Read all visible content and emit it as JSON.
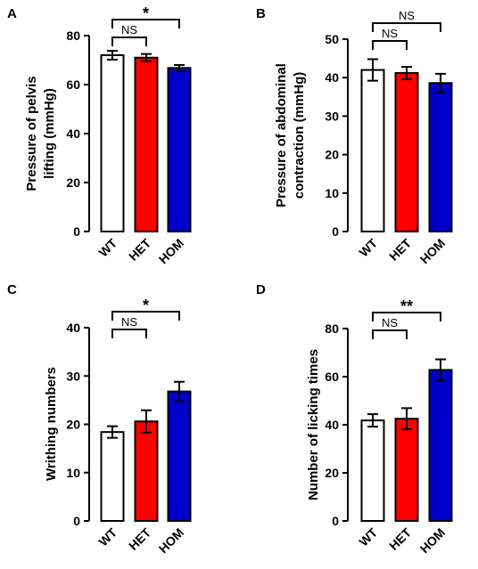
{
  "colors": {
    "WT": "#ffffff",
    "HET": "#ff0000",
    "HOM": "#0000cc",
    "stroke": "#000000"
  },
  "chart_data": [
    {
      "id": "A",
      "type": "bar",
      "panel_label": "A",
      "ylabel_lines": [
        "Pressure of pelvis",
        "lifting (mmHg)"
      ],
      "categories": [
        "WT",
        "HET",
        "HOM"
      ],
      "values": [
        72,
        71,
        66.8
      ],
      "errors": [
        1.8,
        1.5,
        1.2
      ],
      "ylim": [
        0,
        80
      ],
      "yticks": [
        0,
        20,
        40,
        60,
        80
      ],
      "comparisons": [
        {
          "from": 0,
          "to": 1,
          "label": "NS",
          "level": 1
        },
        {
          "from": 0,
          "to": 2,
          "label": "*",
          "level": 2
        }
      ]
    },
    {
      "id": "B",
      "type": "bar",
      "panel_label": "B",
      "ylabel_lines": [
        "Pressure of abdominal",
        "contraction (mmHg)"
      ],
      "categories": [
        "WT",
        "HET",
        "HOM"
      ],
      "values": [
        42,
        41.2,
        38.6
      ],
      "errors": [
        2.8,
        1.6,
        2.4
      ],
      "ylim": [
        0,
        50
      ],
      "yticks": [
        0,
        10,
        20,
        30,
        40,
        50
      ],
      "comparisons": [
        {
          "from": 0,
          "to": 1,
          "label": "NS",
          "level": 1
        },
        {
          "from": 0,
          "to": 2,
          "label": "NS",
          "level": 2
        }
      ]
    },
    {
      "id": "C",
      "type": "bar",
      "panel_label": "C",
      "ylabel_lines": [
        "Writhing numbers"
      ],
      "categories": [
        "WT",
        "HET",
        "HOM"
      ],
      "values": [
        18.4,
        20.6,
        26.8
      ],
      "errors": [
        1.2,
        2.3,
        2.0
      ],
      "ylim": [
        0,
        40
      ],
      "yticks": [
        0,
        10,
        20,
        30,
        40
      ],
      "comparisons": [
        {
          "from": 0,
          "to": 1,
          "label": "NS",
          "level": 1
        },
        {
          "from": 0,
          "to": 2,
          "label": "*",
          "level": 2
        }
      ]
    },
    {
      "id": "D",
      "type": "bar",
      "panel_label": "D",
      "ylabel_lines": [
        "Number of licking times"
      ],
      "categories": [
        "WT",
        "HET",
        "HOM"
      ],
      "values": [
        41.8,
        42.5,
        62.8
      ],
      "errors": [
        2.6,
        4.4,
        4.4
      ],
      "ylim": [
        0,
        80
      ],
      "yticks": [
        0,
        20,
        40,
        60,
        80
      ],
      "comparisons": [
        {
          "from": 0,
          "to": 1,
          "label": "NS",
          "level": 1
        },
        {
          "from": 0,
          "to": 2,
          "label": "**",
          "level": 2
        }
      ]
    }
  ]
}
